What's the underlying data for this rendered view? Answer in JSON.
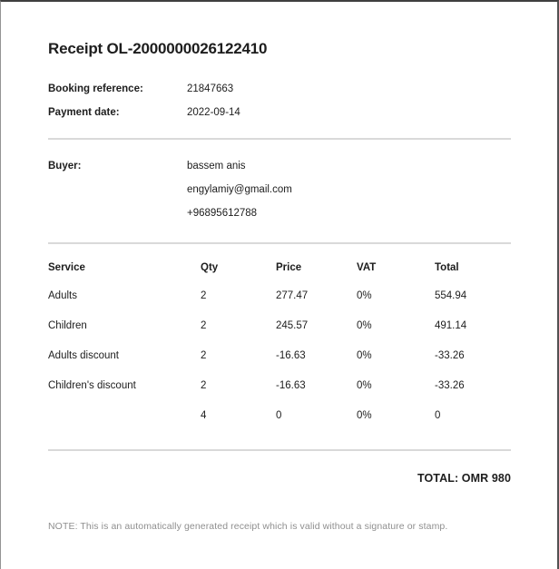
{
  "receipt": {
    "title": "Receipt OL-2000000026122410",
    "info": [
      {
        "label": "Booking reference:",
        "value": "21847663"
      },
      {
        "label": "Payment date:",
        "value": "2022-09-14"
      }
    ],
    "buyer": {
      "label": "Buyer:",
      "name": "bassem anis",
      "email": "engylamiy@gmail.com",
      "phone": "+96895612788"
    },
    "table": {
      "headers": [
        "Service",
        "Qty",
        "Price",
        "VAT",
        "Total"
      ],
      "rows": [
        [
          "Adults",
          "2",
          "277.47",
          "0%",
          "554.94"
        ],
        [
          "Children",
          "2",
          "245.57",
          "0%",
          "491.14"
        ],
        [
          "Adults discount",
          "2",
          "-16.63",
          "0%",
          "-33.26"
        ],
        [
          "Children's discount",
          "2",
          "-16.63",
          "0%",
          "-33.26"
        ],
        [
          "",
          "4",
          "0",
          "0%",
          "0"
        ]
      ]
    },
    "total": "TOTAL: OMR 980",
    "note": "NOTE: This is an automatically generated receipt which is valid without a signature or stamp."
  },
  "colors": {
    "text": "#1d1d1d",
    "muted": "#8f8f8f",
    "divider": "#d9d9d9",
    "background": "#ffffff"
  }
}
